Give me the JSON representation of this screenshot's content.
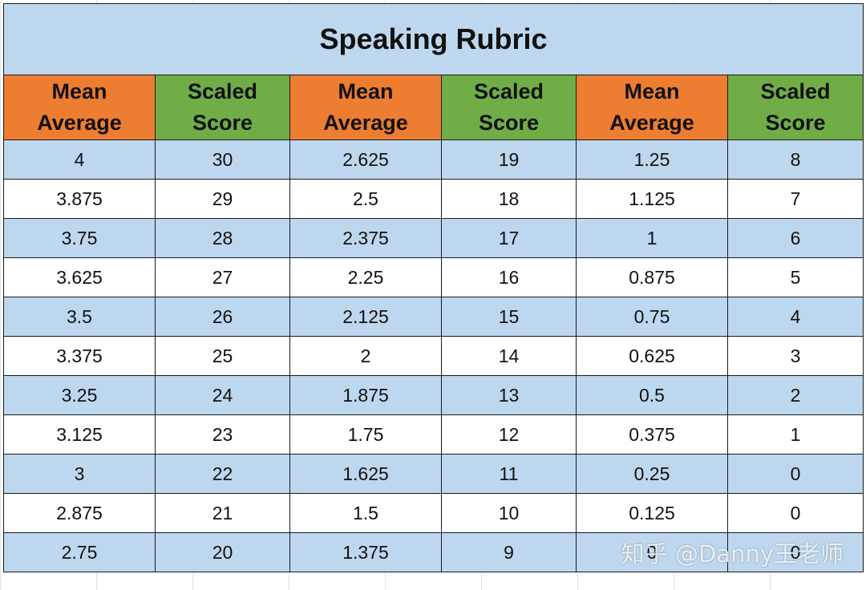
{
  "title": "Speaking Rubric",
  "headers": [
    {
      "line1": "Mean",
      "line2": "Average",
      "color": "#ed7d31"
    },
    {
      "line1": "Scaled",
      "line2": "Score",
      "color": "#70ad47"
    },
    {
      "line1": "Mean",
      "line2": "Average",
      "color": "#ed7d31"
    },
    {
      "line1": "Scaled",
      "line2": "Score",
      "color": "#70ad47"
    },
    {
      "line1": "Mean",
      "line2": "Average",
      "color": "#ed7d31"
    },
    {
      "line1": "Scaled",
      "line2": "Score",
      "color": "#70ad47"
    }
  ],
  "rows": [
    [
      "4",
      "30",
      "2.625",
      "19",
      "1.25",
      "8"
    ],
    [
      "3.875",
      "29",
      "2.5",
      "18",
      "1.125",
      "7"
    ],
    [
      "3.75",
      "28",
      "2.375",
      "17",
      "1",
      "6"
    ],
    [
      "3.625",
      "27",
      "2.25",
      "16",
      "0.875",
      "5"
    ],
    [
      "3.5",
      "26",
      "2.125",
      "15",
      "0.75",
      "4"
    ],
    [
      "3.375",
      "25",
      "2",
      "14",
      "0.625",
      "3"
    ],
    [
      "3.25",
      "24",
      "1.875",
      "13",
      "0.5",
      "2"
    ],
    [
      "3.125",
      "23",
      "1.75",
      "12",
      "0.375",
      "1"
    ],
    [
      "3",
      "22",
      "1.625",
      "11",
      "0.25",
      "0"
    ],
    [
      "2.875",
      "21",
      "1.5",
      "10",
      "0.125",
      "0"
    ],
    [
      "2.75",
      "20",
      "1.375",
      "9",
      "0",
      "0"
    ]
  ],
  "colors": {
    "title_bg": "#bdd7ee",
    "band_blue": "#bdd7ee",
    "band_white": "#ffffff",
    "header_orange": "#ed7d31",
    "header_green": "#70ad47"
  },
  "watermark": "知乎 @Danny王老师"
}
